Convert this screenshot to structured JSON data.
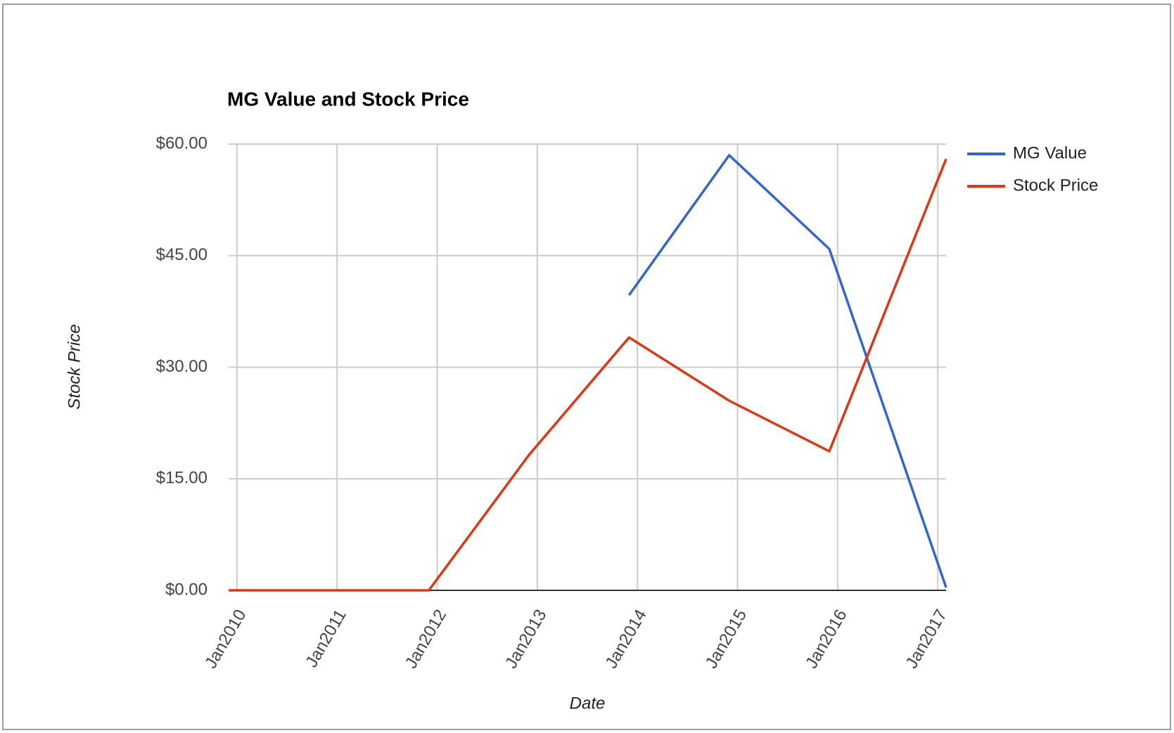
{
  "chart_data": {
    "type": "line",
    "title": "MG Value and Stock Price",
    "x_label": "Date",
    "y_label": "Stock Price",
    "x": [
      "Dec2009",
      "Dec2010",
      "Dec2011",
      "Dec2012",
      "Dec2013",
      "Dec2014",
      "Dec2015",
      "Feb2017"
    ],
    "series": [
      {
        "name": "MG Value",
        "color": "#3366cc",
        "values": [
          null,
          null,
          null,
          null,
          39.7,
          58.5,
          45.9,
          0.4
        ]
      },
      {
        "name": "Stock Price",
        "color": "#dc3912",
        "values": [
          0,
          0,
          0,
          18.2,
          34.0,
          25.5,
          18.7,
          58.0
        ]
      }
    ],
    "xlim": [
      "Dec2009",
      "Feb2017"
    ],
    "xticks": [
      "Jan2010",
      "Jan2011",
      "Jan2012",
      "Jan2013",
      "Jan2014",
      "Jan2015",
      "Jan2016",
      "Jan2017"
    ],
    "ylim": [
      0,
      60
    ],
    "yticks": [
      {
        "value": 0,
        "label": "$0.00"
      },
      {
        "value": 15,
        "label": "$15.00"
      },
      {
        "value": 30,
        "label": "$30.00"
      },
      {
        "value": 45,
        "label": "$45.00"
      },
      {
        "value": 60,
        "label": "$60.00"
      }
    ],
    "grid": true,
    "legend": "right"
  }
}
